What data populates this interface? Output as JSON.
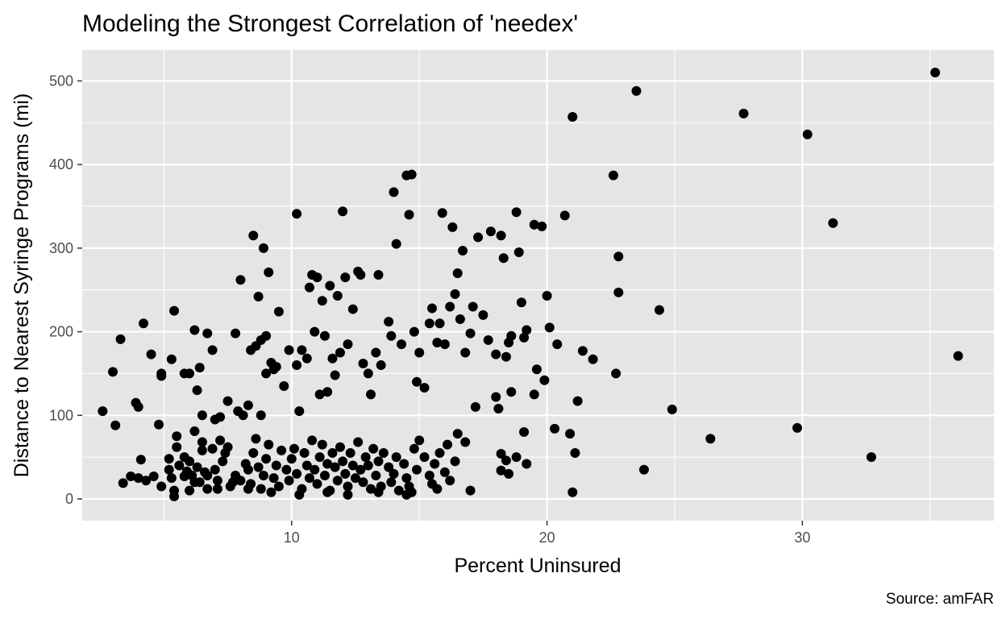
{
  "chart_data": {
    "type": "scatter",
    "title": "Modeling the Strongest Correlation of 'needex'",
    "xlabel": "Percent Uninsured",
    "ylabel": "Distance to Nearest Syringe Programs (mi)",
    "caption": "Source: amFAR",
    "xlim": [
      1.8,
      37.5
    ],
    "ylim": [
      -26,
      537
    ],
    "x_ticks": [
      10,
      20,
      30
    ],
    "x_tick_labels": [
      "10",
      "20",
      "30"
    ],
    "y_ticks": [
      0,
      100,
      200,
      300,
      400,
      500
    ],
    "y_tick_labels": [
      "0",
      "100",
      "200",
      "300",
      "400",
      "500"
    ],
    "grid": true,
    "legend": "none",
    "colors": {
      "panel": "#e5e5e5",
      "grid": "#ffffff",
      "point": "#000000",
      "tick": "#4d4d4d"
    },
    "points": [
      [
        2.6,
        105
      ],
      [
        3.0,
        152
      ],
      [
        3.1,
        88
      ],
      [
        3.3,
        191
      ],
      [
        3.9,
        115
      ],
      [
        4.0,
        110
      ],
      [
        4.1,
        47
      ],
      [
        4.2,
        210
      ],
      [
        4.5,
        173
      ],
      [
        4.8,
        89
      ],
      [
        4.9,
        150
      ],
      [
        4.9,
        147
      ],
      [
        3.4,
        19
      ],
      [
        3.7,
        27
      ],
      [
        4.0,
        25
      ],
      [
        4.3,
        22
      ],
      [
        4.6,
        27
      ],
      [
        4.9,
        15
      ],
      [
        5.2,
        48
      ],
      [
        5.2,
        35
      ],
      [
        5.3,
        25
      ],
      [
        5.4,
        10
      ],
      [
        5.4,
        3
      ],
      [
        5.5,
        62
      ],
      [
        5.5,
        75
      ],
      [
        5.6,
        40
      ],
      [
        5.8,
        50
      ],
      [
        5.9,
        33
      ],
      [
        6.0,
        45
      ],
      [
        6.0,
        10
      ],
      [
        6.1,
        28
      ],
      [
        6.3,
        38
      ],
      [
        6.4,
        20
      ],
      [
        6.5,
        58
      ],
      [
        6.5,
        68
      ],
      [
        6.6,
        32
      ],
      [
        6.7,
        28
      ],
      [
        6.7,
        12
      ],
      [
        6.9,
        60
      ],
      [
        7.0,
        35
      ],
      [
        7.1,
        22
      ],
      [
        7.1,
        12
      ],
      [
        7.2,
        70
      ],
      [
        7.3,
        45
      ],
      [
        7.4,
        55
      ],
      [
        7.5,
        62
      ],
      [
        7.6,
        15
      ],
      [
        7.8,
        28
      ],
      [
        8.0,
        22
      ],
      [
        8.2,
        42
      ],
      [
        8.3,
        35
      ],
      [
        8.4,
        18
      ],
      [
        8.5,
        55
      ],
      [
        8.6,
        72
      ],
      [
        8.7,
        38
      ],
      [
        8.8,
        12
      ],
      [
        8.9,
        28
      ],
      [
        9.0,
        48
      ],
      [
        9.1,
        65
      ],
      [
        9.3,
        25
      ],
      [
        9.4,
        40
      ],
      [
        9.5,
        15
      ],
      [
        9.6,
        58
      ],
      [
        9.8,
        35
      ],
      [
        9.9,
        22
      ],
      [
        10.0,
        48
      ],
      [
        10.1,
        60
      ],
      [
        10.2,
        30
      ],
      [
        10.4,
        12
      ],
      [
        10.5,
        55
      ],
      [
        10.6,
        40
      ],
      [
        10.7,
        25
      ],
      [
        10.8,
        70
      ],
      [
        10.9,
        35
      ],
      [
        11.0,
        18
      ],
      [
        11.1,
        50
      ],
      [
        11.2,
        65
      ],
      [
        11.3,
        28
      ],
      [
        11.4,
        42
      ],
      [
        11.5,
        10
      ],
      [
        11.6,
        55
      ],
      [
        11.7,
        38
      ],
      [
        11.8,
        22
      ],
      [
        11.9,
        62
      ],
      [
        12.0,
        45
      ],
      [
        12.1,
        30
      ],
      [
        12.2,
        15
      ],
      [
        12.3,
        55
      ],
      [
        12.4,
        40
      ],
      [
        12.5,
        25
      ],
      [
        12.6,
        68
      ],
      [
        12.7,
        35
      ],
      [
        12.8,
        20
      ],
      [
        12.9,
        50
      ],
      [
        13.0,
        40
      ],
      [
        13.1,
        12
      ],
      [
        13.2,
        60
      ],
      [
        13.3,
        28
      ],
      [
        13.4,
        45
      ],
      [
        13.5,
        15
      ],
      [
        13.6,
        55
      ],
      [
        13.8,
        38
      ],
      [
        13.9,
        20
      ],
      [
        14.0,
        30
      ],
      [
        14.1,
        50
      ],
      [
        14.2,
        10
      ],
      [
        14.4,
        42
      ],
      [
        14.5,
        25
      ],
      [
        14.6,
        15
      ],
      [
        14.7,
        8
      ],
      [
        14.8,
        60
      ],
      [
        14.9,
        35
      ],
      [
        15.0,
        70
      ],
      [
        15.2,
        50
      ],
      [
        15.4,
        28
      ],
      [
        15.5,
        18
      ],
      [
        15.6,
        42
      ],
      [
        15.7,
        12
      ],
      [
        15.8,
        55
      ],
      [
        16.0,
        32
      ],
      [
        16.1,
        65
      ],
      [
        16.2,
        22
      ],
      [
        16.4,
        45
      ],
      [
        16.5,
        78
      ],
      [
        16.8,
        68
      ],
      [
        17.0,
        10
      ],
      [
        5.8,
        27
      ],
      [
        6.2,
        20
      ],
      [
        7.7,
        20
      ],
      [
        8.3,
        12
      ],
      [
        9.2,
        8
      ],
      [
        10.3,
        5
      ],
      [
        11.4,
        8
      ],
      [
        12.2,
        5
      ],
      [
        13.4,
        8
      ],
      [
        14.5,
        5
      ],
      [
        5.3,
        167
      ],
      [
        5.8,
        150
      ],
      [
        6.0,
        150
      ],
      [
        6.2,
        202
      ],
      [
        6.3,
        130
      ],
      [
        6.5,
        100
      ],
      [
        6.7,
        198
      ],
      [
        6.9,
        178
      ],
      [
        5.4,
        225
      ],
      [
        6.4,
        157
      ],
      [
        6.2,
        81
      ],
      [
        7.0,
        95
      ],
      [
        7.2,
        98
      ],
      [
        7.5,
        117
      ],
      [
        7.8,
        198
      ],
      [
        7.9,
        105
      ],
      [
        8.0,
        262
      ],
      [
        8.1,
        100
      ],
      [
        8.3,
        112
      ],
      [
        8.4,
        178
      ],
      [
        8.5,
        315
      ],
      [
        8.6,
        183
      ],
      [
        8.7,
        242
      ],
      [
        8.8,
        190
      ],
      [
        8.8,
        100
      ],
      [
        8.9,
        300
      ],
      [
        9.0,
        195
      ],
      [
        9.0,
        150
      ],
      [
        9.1,
        271
      ],
      [
        9.2,
        163
      ],
      [
        9.3,
        155
      ],
      [
        9.4,
        158
      ],
      [
        9.5,
        224
      ],
      [
        9.7,
        135
      ],
      [
        9.9,
        178
      ],
      [
        10.2,
        341
      ],
      [
        10.2,
        160
      ],
      [
        10.3,
        105
      ],
      [
        10.4,
        178
      ],
      [
        10.6,
        168
      ],
      [
        10.7,
        253
      ],
      [
        10.8,
        268
      ],
      [
        10.9,
        200
      ],
      [
        11.0,
        265
      ],
      [
        11.1,
        125
      ],
      [
        11.2,
        237
      ],
      [
        11.3,
        195
      ],
      [
        11.4,
        128
      ],
      [
        11.5,
        255
      ],
      [
        11.6,
        168
      ],
      [
        11.7,
        148
      ],
      [
        11.8,
        243
      ],
      [
        11.9,
        175
      ],
      [
        12.0,
        344
      ],
      [
        12.1,
        265
      ],
      [
        12.2,
        185
      ],
      [
        12.4,
        227
      ],
      [
        12.6,
        272
      ],
      [
        12.7,
        268
      ],
      [
        12.8,
        162
      ],
      [
        13.0,
        150
      ],
      [
        13.1,
        125
      ],
      [
        13.3,
        175
      ],
      [
        13.4,
        268
      ],
      [
        13.5,
        160
      ],
      [
        13.8,
        212
      ],
      [
        13.9,
        195
      ],
      [
        14.0,
        367
      ],
      [
        14.1,
        305
      ],
      [
        14.3,
        185
      ],
      [
        14.5,
        387
      ],
      [
        14.6,
        340
      ],
      [
        14.7,
        388
      ],
      [
        14.8,
        200
      ],
      [
        14.9,
        140
      ],
      [
        15.0,
        175
      ],
      [
        15.2,
        133
      ],
      [
        15.4,
        210
      ],
      [
        15.5,
        228
      ],
      [
        15.7,
        187
      ],
      [
        15.8,
        210
      ],
      [
        15.9,
        342
      ],
      [
        16.0,
        185
      ],
      [
        16.2,
        230
      ],
      [
        16.3,
        325
      ],
      [
        16.4,
        245
      ],
      [
        16.5,
        270
      ],
      [
        16.6,
        215
      ],
      [
        16.7,
        297
      ],
      [
        16.8,
        175
      ],
      [
        17.0,
        198
      ],
      [
        17.1,
        230
      ],
      [
        17.3,
        313
      ],
      [
        17.5,
        220
      ],
      [
        17.7,
        190
      ],
      [
        17.8,
        320
      ],
      [
        18.0,
        173
      ],
      [
        18.2,
        315
      ],
      [
        18.3,
        288
      ],
      [
        18.5,
        187
      ],
      [
        18.6,
        195
      ],
      [
        18.8,
        343
      ],
      [
        18.9,
        295
      ],
      [
        19.0,
        235
      ],
      [
        19.1,
        193
      ],
      [
        19.2,
        202
      ],
      [
        19.5,
        328
      ],
      [
        19.6,
        155
      ],
      [
        19.8,
        326
      ],
      [
        19.9,
        142
      ],
      [
        20.0,
        243
      ],
      [
        20.1,
        205
      ],
      [
        20.4,
        185
      ],
      [
        20.7,
        339
      ],
      [
        21.0,
        457
      ],
      [
        21.4,
        177
      ],
      [
        21.8,
        167
      ],
      [
        22.6,
        387
      ],
      [
        22.8,
        290
      ],
      [
        22.8,
        247
      ],
      [
        23.5,
        488
      ],
      [
        24.4,
        226
      ],
      [
        27.7,
        461
      ],
      [
        30.2,
        436
      ],
      [
        31.2,
        330
      ],
      [
        35.2,
        510
      ],
      [
        36.1,
        171
      ],
      [
        24.9,
        107
      ],
      [
        17.2,
        110
      ],
      [
        18.0,
        122
      ],
      [
        18.1,
        108
      ],
      [
        18.4,
        170
      ],
      [
        18.6,
        128
      ],
      [
        19.1,
        80
      ],
      [
        19.5,
        125
      ],
      [
        20.3,
        84
      ],
      [
        20.9,
        78
      ],
      [
        21.2,
        117
      ],
      [
        22.7,
        150
      ],
      [
        21.1,
        55
      ],
      [
        21.0,
        8
      ],
      [
        23.8,
        35
      ],
      [
        26.4,
        72
      ],
      [
        29.8,
        85
      ],
      [
        32.7,
        50
      ],
      [
        18.2,
        54
      ],
      [
        18.4,
        46
      ],
      [
        18.8,
        50
      ],
      [
        19.2,
        42
      ],
      [
        18.2,
        34
      ],
      [
        18.5,
        30
      ]
    ]
  }
}
